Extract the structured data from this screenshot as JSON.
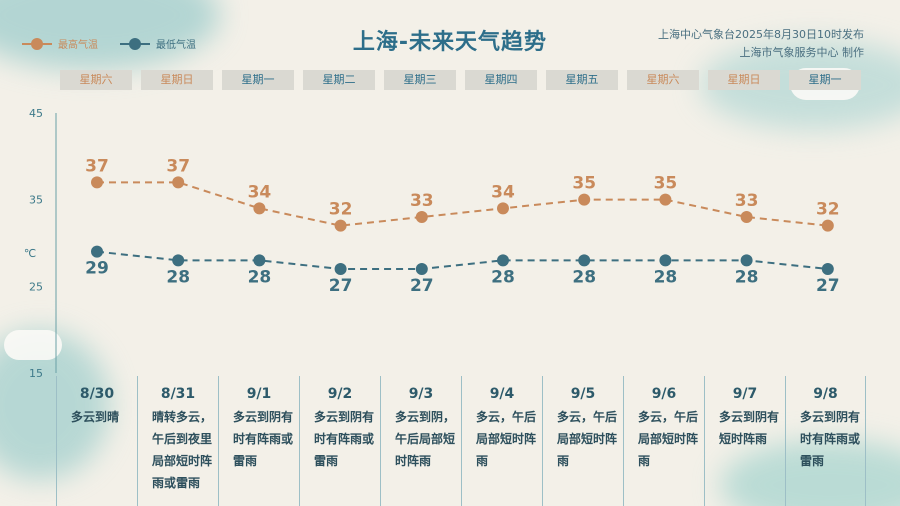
{
  "title": "上海-未来天气趋势",
  "issuer": {
    "line1": "上海中心气象台2025年8月30日10时发布",
    "line2": "上海市气象服务中心 制作"
  },
  "legend": {
    "high": "最高气温",
    "low": "最低气温"
  },
  "colors": {
    "high": "#c98a5b",
    "low": "#3d6f80",
    "axis": "#6aa0a6",
    "weekend_text": "#c98a5b",
    "weekday_text": "#2d6e8a"
  },
  "unit": "℃",
  "weekdays": [
    "星期六",
    "星期日",
    "星期一",
    "星期二",
    "星期三",
    "星期四",
    "星期五",
    "星期六",
    "星期日",
    "星期一"
  ],
  "weekend_flags": [
    true,
    true,
    false,
    false,
    false,
    false,
    false,
    true,
    true,
    false
  ],
  "chart_data": {
    "type": "line",
    "categories": [
      "8/30",
      "8/31",
      "9/1",
      "9/2",
      "9/3",
      "9/4",
      "9/5",
      "9/6",
      "9/7",
      "9/8"
    ],
    "series": [
      {
        "name": "最高气温",
        "values": [
          37,
          37,
          34,
          32,
          33,
          34,
          35,
          35,
          33,
          32
        ]
      },
      {
        "name": "最低气温",
        "values": [
          29,
          28,
          28,
          27,
          27,
          28,
          28,
          28,
          28,
          27
        ]
      }
    ],
    "ylim": [
      15,
      45
    ],
    "yticks": [
      "45",
      "35",
      "25",
      "15"
    ],
    "grid": false,
    "legend_position": "top-left"
  },
  "days": [
    {
      "date": "8/30",
      "weather": "多云到晴"
    },
    {
      "date": "8/31",
      "weather": "晴转多云，午后到夜里局部短时阵雨或雷雨"
    },
    {
      "date": "9/1",
      "weather": "多云到阴有时有阵雨或雷雨"
    },
    {
      "date": "9/2",
      "weather": "多云到阴有时有阵雨或雷雨"
    },
    {
      "date": "9/3",
      "weather": "多云到阴，午后局部短时阵雨"
    },
    {
      "date": "9/4",
      "weather": "多云，午后局部短时阵雨"
    },
    {
      "date": "9/5",
      "weather": "多云，午后局部短时阵雨"
    },
    {
      "date": "9/6",
      "weather": "多云，午后局部短时阵雨"
    },
    {
      "date": "9/7",
      "weather": "多云到阴有短时阵雨"
    },
    {
      "date": "9/8",
      "weather": "多云到阴有时有阵雨或雷雨"
    }
  ]
}
